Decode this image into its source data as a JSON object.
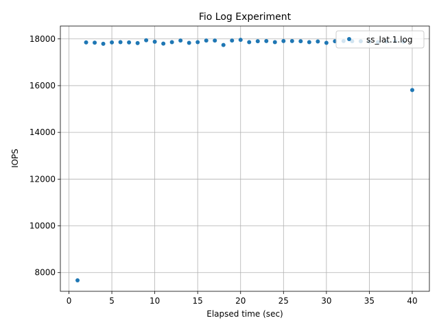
{
  "chart_data": {
    "type": "scatter",
    "title": "Fio Log Experiment",
    "xlabel": "Elapsed time (sec)",
    "ylabel": "IOPS",
    "xlim": [
      -1,
      42
    ],
    "ylim": [
      7200,
      18550
    ],
    "xticks": [
      0,
      5,
      10,
      15,
      20,
      25,
      30,
      35,
      40
    ],
    "yticks": [
      8000,
      10000,
      12000,
      14000,
      16000,
      18000
    ],
    "grid": true,
    "legend_position": "top-right",
    "series": [
      {
        "name": "ss_lat.1.log",
        "color": "#1f77b4",
        "x": [
          1,
          2,
          3,
          4,
          5,
          6,
          7,
          8,
          9,
          10,
          11,
          12,
          13,
          14,
          15,
          16,
          17,
          18,
          19,
          20,
          21,
          22,
          23,
          24,
          25,
          26,
          27,
          28,
          29,
          30,
          31,
          32,
          33,
          34,
          35,
          36,
          37,
          38,
          39,
          40
        ],
        "y": [
          7670,
          17850,
          17840,
          17790,
          17850,
          17860,
          17850,
          17820,
          17940,
          17880,
          17800,
          17860,
          17930,
          17830,
          17860,
          17930,
          17930,
          17740,
          17930,
          17960,
          17860,
          17900,
          17910,
          17860,
          17910,
          17910,
          17900,
          17860,
          17890,
          17830,
          17900,
          17910,
          17900,
          17900,
          17880,
          17860,
          17890,
          17900,
          17880,
          15810
        ]
      }
    ]
  }
}
